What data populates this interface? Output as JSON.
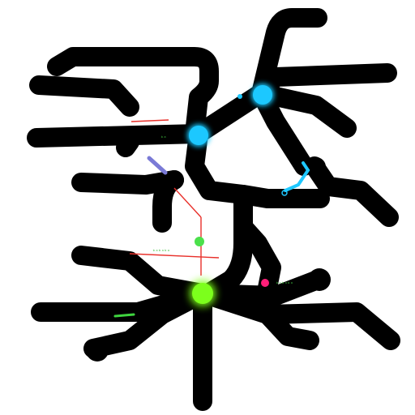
{
  "scene": {
    "background": "#ffffff",
    "pipe_color": "#000000",
    "laser_color": "#e8302a",
    "node_colors": {
      "cyan": "#1ec8ff",
      "green": "#7cff1e",
      "magenta": "#ff1e78"
    },
    "labels": {
      "green_tag": "ᵇᵃᵇᵃᵇᵃ",
      "right_tag": "ᵇᵃᵇᵃᵇᵃ",
      "top_tag": "ᵇᵃ"
    }
  }
}
